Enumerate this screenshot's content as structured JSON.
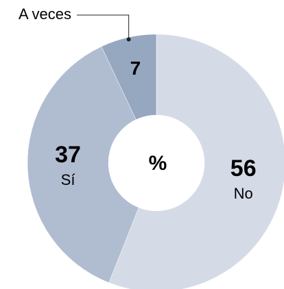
{
  "chart_data": {
    "type": "pie",
    "donut": true,
    "center_label": "%",
    "categories": [
      "No",
      "Sí",
      "A veces"
    ],
    "values": [
      56,
      37,
      7
    ],
    "colors": [
      "#d5dbe6",
      "#b0bdd1",
      "#96a7c0"
    ]
  }
}
